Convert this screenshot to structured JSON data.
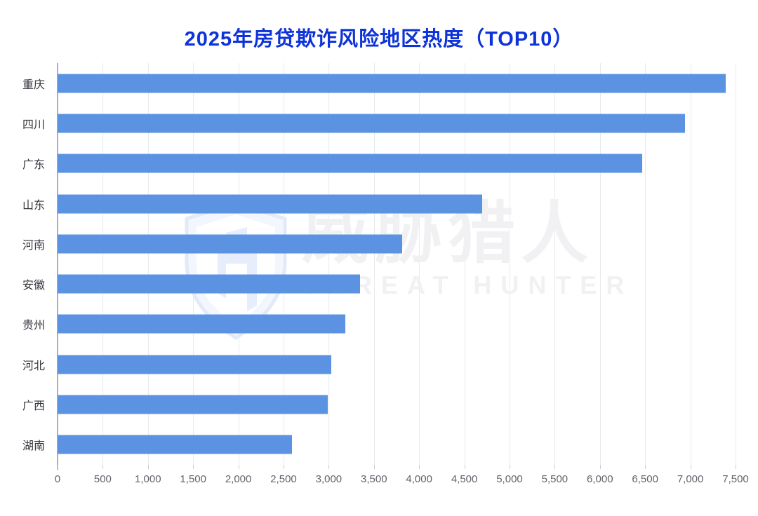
{
  "page": {
    "title": "2025年房贷欺诈风险地区热度（TOP10）"
  },
  "watermark": {
    "icon": "shield-logo",
    "cn": "威胁猎人",
    "en": "THREAT HUNTER"
  },
  "chart_data": {
    "type": "bar",
    "orientation": "horizontal",
    "title": "2025年房贷欺诈风险地区热度（TOP10）",
    "categories": [
      "重庆",
      "四川",
      "广东",
      "山东",
      "河南",
      "安徽",
      "贵州",
      "河北",
      "广西",
      "湖南"
    ],
    "values": [
      7390,
      6940,
      6470,
      4700,
      3810,
      3350,
      3180,
      3030,
      2990,
      2590
    ],
    "xlabel": "",
    "ylabel": "",
    "xlim": [
      0,
      7500
    ],
    "x_ticks": [
      0,
      500,
      1000,
      1500,
      2000,
      2500,
      3000,
      3500,
      4000,
      4500,
      5000,
      5500,
      6000,
      6500,
      7000,
      7500
    ],
    "x_tick_labels": [
      "0",
      "500",
      "1,000",
      "1,500",
      "2,000",
      "2,500",
      "3,000",
      "3,500",
      "4,000",
      "4,500",
      "5,000",
      "5,500",
      "6,000",
      "6,500",
      "7,000",
      "7,500"
    ],
    "grid": true,
    "legend": false,
    "bar_color": "#5b93e2",
    "title_color": "#0d33d9",
    "axis_line_color": "#aab0b8",
    "gridline_color": "#e9eaec"
  }
}
